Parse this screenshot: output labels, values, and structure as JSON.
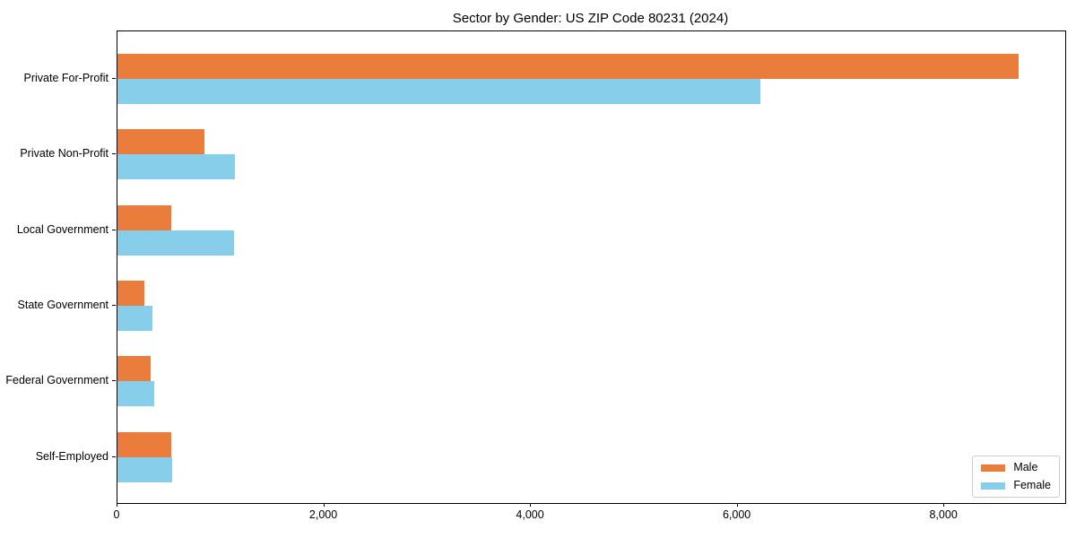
{
  "title": "Sector by Gender: US ZIP Code 80231 (2024)",
  "colors": {
    "male_bar": "#EB7D3C",
    "female_bar": "#87CEEB",
    "axis": "#000000",
    "legend_border": "#CCCCCC",
    "background": "#FFFFFF"
  },
  "chart_data": {
    "type": "bar",
    "orientation": "horizontal",
    "title": "Sector by Gender: US ZIP Code 80231 (2024)",
    "categories": [
      "Private For-Profit",
      "Private Non-Profit",
      "Local Government",
      "State Government",
      "Federal Government",
      "Self-Employed"
    ],
    "series": [
      {
        "name": "Male",
        "color": "#EB7D3C",
        "values": [
          8720,
          840,
          520,
          260,
          320,
          520
        ]
      },
      {
        "name": "Female",
        "color": "#87CEEB",
        "values": [
          6220,
          1140,
          1130,
          340,
          360,
          530
        ]
      }
    ],
    "xlabel": "",
    "ylabel": "",
    "xlim": [
      0,
      9170
    ],
    "xticks": [
      0,
      2000,
      4000,
      6000,
      8000
    ],
    "xtick_labels": [
      "0",
      "2,000",
      "4,000",
      "6,000",
      "8,000"
    ],
    "grid": false,
    "legend": {
      "position": "lower right",
      "entries": [
        "Male",
        "Female"
      ]
    }
  }
}
